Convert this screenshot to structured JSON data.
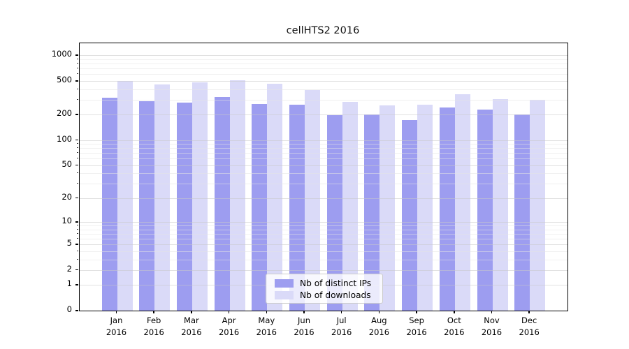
{
  "title": "cellHTS2 2016",
  "chart_data": {
    "type": "bar",
    "title": "cellHTS2 2016",
    "categories": [
      "Jan",
      "Feb",
      "Mar",
      "Apr",
      "May",
      "Jun",
      "Jul",
      "Aug",
      "Sep",
      "Oct",
      "Nov",
      "Dec"
    ],
    "category_year": "2016",
    "series": [
      {
        "name": "Nb of distinct IPs",
        "color": "#9d9df0",
        "values": [
          318,
          288,
          280,
          324,
          267,
          265,
          197,
          203,
          173,
          245,
          232,
          202
        ]
      },
      {
        "name": "Nb of downloads",
        "color": "#dadaf8",
        "values": [
          500,
          458,
          482,
          508,
          466,
          389,
          285,
          259,
          262,
          348,
          306,
          302
        ]
      }
    ],
    "yscale": "log10(1+y)",
    "yticks": [
      0,
      1,
      2,
      5,
      10,
      20,
      50,
      100,
      200,
      500,
      1000
    ],
    "ylim": [
      0,
      1390
    ],
    "xlabel": "",
    "ylabel": "",
    "grid": "on",
    "grid_above_bars": true,
    "legend_position": "bottom-center"
  },
  "legend": {
    "items": [
      {
        "label": "Nb of distinct IPs"
      },
      {
        "label": "Nb of downloads"
      }
    ]
  },
  "colors": {
    "distinct_ips_bar": "#9d9df0",
    "downloads_bar": "#dadaf8",
    "axis": "#000000",
    "grid_major": "#cccccc",
    "grid_minor": "#e4e4e4",
    "background": "#ffffff"
  }
}
